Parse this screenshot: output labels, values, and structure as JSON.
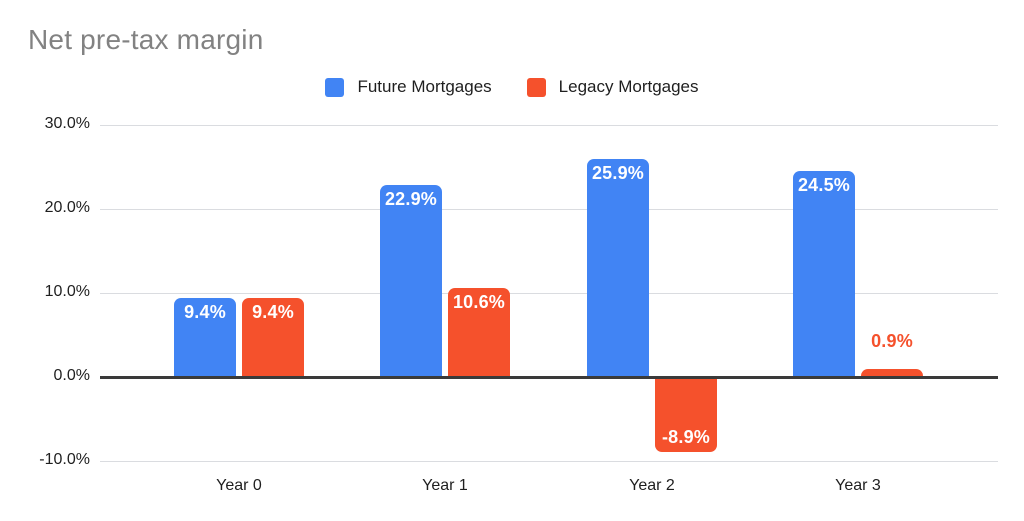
{
  "title": "Net pre-tax margin",
  "chart_data": {
    "type": "bar",
    "title": "Net pre-tax margin",
    "categories": [
      "Year 0",
      "Year 1",
      "Year 2",
      "Year 3"
    ],
    "series": [
      {
        "name": "Future Mortgages",
        "color": "#4184F4",
        "values": [
          9.4,
          22.9,
          25.9,
          24.5
        ],
        "labels": [
          "9.4%",
          "22.9%",
          "25.9%",
          "24.5%"
        ]
      },
      {
        "name": "Legacy Mortgages",
        "color": "#F5512C",
        "values": [
          9.4,
          10.6,
          -8.9,
          0.9
        ],
        "labels": [
          "9.4%",
          "10.6%",
          "-8.9%",
          "0.9%"
        ]
      }
    ],
    "y_axis": {
      "min": -10,
      "max": 30,
      "tick_values": [
        30,
        20,
        10,
        0,
        -10
      ],
      "tick_labels": [
        "30.0%",
        "20.0%",
        "10.0%",
        "0.0%",
        "-10.0%"
      ]
    },
    "x_axis": {
      "tick_labels": [
        "Year 0",
        "Year 1",
        "Year 2",
        "Year 3"
      ]
    },
    "legend_position": "top",
    "grid": true
  },
  "style_colors": {
    "background": "#FFFFFF",
    "title_text": "#828282",
    "legend_text": "#1F1F1F",
    "axis_text": "#1F1F1F",
    "gridline": "#DADCE0",
    "zero_line": "#3A3A3A",
    "bar_label_inside": "#FFFFFF"
  }
}
